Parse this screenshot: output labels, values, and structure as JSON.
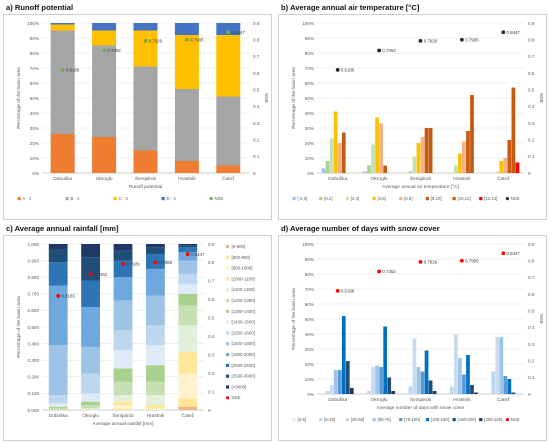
{
  "chart_data": [
    {
      "id": "a",
      "type": "bar",
      "mode": "stacked",
      "title": "a) Runoff potential",
      "xlabel": "Runoff potential",
      "ylabel": "Percentage of the basin area",
      "y2label": "NSE",
      "ylim": [
        0,
        1
      ],
      "y2lim": [
        0,
        0.9
      ],
      "yticks": [
        "0%",
        "10%",
        "20%",
        "30%",
        "40%",
        "50%",
        "60%",
        "70%",
        "80%",
        "90%",
        "100%"
      ],
      "y2ticks": [
        "0",
        "0.1",
        "0.2",
        "0.3",
        "0.4",
        "0.5",
        "0.6",
        "0.7",
        "0.8",
        "0.9"
      ],
      "categories": [
        "Dobuška",
        "Okrogło",
        "Šentjakob",
        "Hrastnik",
        "Čatež"
      ],
      "series": [
        {
          "name": "A - 1",
          "color": "#ed7d31",
          "values": [
            0.26,
            0.24,
            0.15,
            0.08,
            0.05
          ]
        },
        {
          "name": "B - 2",
          "color": "#a5a5a5",
          "values": [
            0.69,
            0.61,
            0.56,
            0.48,
            0.46
          ]
        },
        {
          "name": "C - 3",
          "color": "#ffc000",
          "values": [
            0.04,
            0.1,
            0.24,
            0.36,
            0.41
          ]
        },
        {
          "name": "D - 4",
          "color": "#4472c4",
          "values": [
            0.01,
            0.05,
            0.05,
            0.08,
            0.08
          ]
        }
      ],
      "nse": {
        "name": "NSE",
        "color": "#70ad47",
        "values": [
          0.6186,
          0.7352,
          0.7929,
          0.7995,
          0.8447
        ],
        "labels": [
          "0.6186",
          "0.7352",
          "0.7929",
          "0.7995",
          "0.8447"
        ]
      },
      "legend_position": "bottom"
    },
    {
      "id": "b",
      "type": "bar",
      "mode": "grouped",
      "title": "b) Average annual air temperature [°C]",
      "xlabel": "Average annual air temperature [°C]",
      "ylabel": "Percentage of the basin area",
      "y2label": "NSE",
      "ylim": [
        0,
        1
      ],
      "y2lim": [
        0,
        0.9
      ],
      "yticks": [
        "0%",
        "10%",
        "20%",
        "30%",
        "40%",
        "50%",
        "60%",
        "70%",
        "80%",
        "90%",
        "100%"
      ],
      "y2ticks": [
        "0",
        "0.1",
        "0.2",
        "0.3",
        "0.4",
        "0.5",
        "0.6",
        "0.7",
        "0.8",
        "0.9"
      ],
      "categories": [
        "Dobuška",
        "Okrogło",
        "Šentjakob",
        "Hrastnik",
        "Čatež"
      ],
      "series": [
        {
          "name": "[-2,0]",
          "color": "#9dc3e6",
          "values": [
            0.03,
            0.01,
            0.0,
            0.0,
            0.0
          ]
        },
        {
          "name": "[0,2]",
          "color": "#a9d18e",
          "values": [
            0.08,
            0.05,
            0.01,
            0.0,
            0.0
          ]
        },
        {
          "name": "[2,4]",
          "color": "#c5e0b4",
          "values": [
            0.23,
            0.19,
            0.11,
            0.05,
            0.01
          ]
        },
        {
          "name": "[4,6]",
          "color": "#ffc000",
          "values": [
            0.41,
            0.37,
            0.2,
            0.13,
            0.08
          ]
        },
        {
          "name": "[6,8]",
          "color": "#f4b183",
          "values": [
            0.2,
            0.33,
            0.24,
            0.21,
            0.1
          ]
        },
        {
          "name": "[8,10]",
          "color": "#c55a11",
          "values": [
            0.27,
            0.05,
            0.3,
            0.28,
            0.22
          ]
        },
        {
          "name": "[10,12]",
          "color": "#c55a11",
          "values": [
            0.0,
            0.0,
            0.3,
            0.52,
            0.57
          ]
        },
        {
          "name": "[12,14]",
          "color": "#ff0000",
          "values": [
            0.0,
            0.0,
            0.0,
            0.0,
            0.07
          ]
        }
      ],
      "nse": {
        "name": "NSE",
        "color": "#262626",
        "values": [
          0.6186,
          0.7352,
          0.7929,
          0.7995,
          0.8447
        ],
        "labels": [
          "0.6186",
          "0.7352",
          "0.7929",
          "0.7995",
          "0.8447"
        ]
      },
      "legend_position": "bottom"
    },
    {
      "id": "c",
      "type": "bar",
      "mode": "stacked",
      "title": "c) Average annual rainfall [mm]",
      "xlabel": "Average annual rainfall [mm]",
      "ylabel": "Percentage of the basin area",
      "y2label": "",
      "ylim": [
        0,
        1
      ],
      "y2lim": [
        0,
        0.9
      ],
      "yticks": [
        "0.000",
        "0.100",
        "0.200",
        "0.300",
        "0.400",
        "0.500",
        "0.600",
        "0.700",
        "0.800",
        "0.900",
        "1.000"
      ],
      "y2ticks": [
        "0",
        "0.1",
        "0.2",
        "0.3",
        "0.4",
        "0.5",
        "0.6",
        "0.7",
        "0.8",
        "0.9"
      ],
      "categories": [
        "Dobuška",
        "Okrogło",
        "Šentjakob",
        "Hrastnik",
        "Čatež"
      ],
      "series": [
        {
          "name": "[0-800]",
          "color": "#f4b183",
          "values": [
            0,
            0,
            0,
            0,
            0.02
          ]
        },
        {
          "name": "[800-900]",
          "color": "#ffe699",
          "values": [
            0,
            0,
            0.01,
            0,
            0.05
          ]
        },
        {
          "name": "[900-1000]",
          "color": "#fff2cc",
          "values": [
            0,
            0,
            0.02,
            0.01,
            0.15
          ]
        },
        {
          "name": "[1000-1100]",
          "color": "#ffe699",
          "values": [
            0,
            0,
            0.02,
            0.02,
            0.13
          ]
        },
        {
          "name": "[1100-1200]",
          "color": "#e2efda",
          "values": [
            0,
            0.01,
            0.04,
            0.06,
            0.16
          ]
        },
        {
          "name": "[1200-1300]",
          "color": "#c6e0b4",
          "values": [
            0.01,
            0.02,
            0.08,
            0.08,
            0.12
          ]
        },
        {
          "name": "[1300-1400]",
          "color": "#a9d18e",
          "values": [
            0.01,
            0.02,
            0.08,
            0.1,
            0.07
          ]
        },
        {
          "name": "[1400-1500]",
          "color": "#deebf7",
          "values": [
            0.02,
            0.05,
            0.11,
            0.12,
            0.06
          ]
        },
        {
          "name": "[1500-1600]",
          "color": "#bdd7ee",
          "values": [
            0.05,
            0.12,
            0.12,
            0.12,
            0.06
          ]
        },
        {
          "name": "[1600-1800]",
          "color": "#9dc3e6",
          "values": [
            0.3,
            0.16,
            0.18,
            0.18,
            0.08
          ]
        },
        {
          "name": "[1800-2000]",
          "color": "#6fa8dc",
          "values": [
            0.36,
            0.24,
            0.14,
            0.16,
            0.05
          ]
        },
        {
          "name": "[2000-2500]",
          "color": "#2e75b6",
          "values": [
            0.14,
            0.16,
            0.1,
            0.09,
            0.03
          ]
        },
        {
          "name": "[2500-3000]",
          "color": "#1f4e79",
          "values": [
            0.08,
            0.14,
            0.06,
            0.04,
            0.01
          ]
        },
        {
          "name": "[>3000]",
          "color": "#203864",
          "values": [
            0.03,
            0.08,
            0.04,
            0.02,
            0.01
          ]
        }
      ],
      "nse": {
        "name": "NSE",
        "color": "#ff0000",
        "values": [
          0.6186,
          0.7352,
          0.7929,
          0.7995,
          0.8447
        ],
        "labels": [
          "0.6186",
          "0.7352",
          "0.7929",
          "0.7995",
          "0.8447"
        ]
      },
      "legend_position": "right"
    },
    {
      "id": "d",
      "type": "bar",
      "mode": "grouped",
      "title": "d) Average number of days with snow cover",
      "xlabel": "Average number of days with snow cover",
      "ylabel": "Percentage of the basin area",
      "y2label": "NSE",
      "ylim": [
        0,
        1
      ],
      "y2lim": [
        0,
        0.9
      ],
      "yticks": [
        "0%",
        "10%",
        "20%",
        "30%",
        "40%",
        "50%",
        "60%",
        "70%",
        "80%",
        "90%",
        "100%"
      ],
      "y2ticks": [
        "0",
        "0.1",
        "0.2",
        "0.3",
        "0.4",
        "0.5",
        "0.6",
        "0.7",
        "0.8",
        "0.9"
      ],
      "categories": [
        "Dobuška",
        "Okrogło",
        "Šentjakob",
        "Hrastnik",
        "Čatež"
      ],
      "series": [
        {
          "name": "[0-5]",
          "color": "#deebf7",
          "values": [
            0.0,
            0.0,
            0.0,
            0.0,
            0.0
          ]
        },
        {
          "name": "[5-25]",
          "color": "#bdd7ee",
          "values": [
            0.02,
            0.02,
            0.05,
            0.05,
            0.15
          ]
        },
        {
          "name": "[25-50]",
          "color": "#c9dcef",
          "values": [
            0.06,
            0.18,
            0.37,
            0.4,
            0.38
          ]
        },
        {
          "name": "[50-75]",
          "color": "#9dc3e6",
          "values": [
            0.16,
            0.19,
            0.18,
            0.24,
            0.38
          ]
        },
        {
          "name": "[75-100]",
          "color": "#5b9bd5",
          "values": [
            0.16,
            0.18,
            0.15,
            0.13,
            0.12
          ]
        },
        {
          "name": "[100-150]",
          "color": "#0070c0",
          "values": [
            0.52,
            0.45,
            0.29,
            0.26,
            0.1
          ]
        },
        {
          "name": "[150-200]",
          "color": "#1f4e79",
          "values": [
            0.22,
            0.11,
            0.09,
            0.06,
            0.01
          ]
        },
        {
          "name": "[200-250]",
          "color": "#203864",
          "values": [
            0.04,
            0.02,
            0.02,
            0.01,
            0.0
          ]
        }
      ],
      "nse": {
        "name": "NSE",
        "color": "#ff0000",
        "values": [
          0.6186,
          0.7352,
          0.7929,
          0.7995,
          0.8447
        ],
        "labels": [
          "0.6186",
          "0.7352",
          "0.7929",
          "0.7995",
          "0.8447"
        ]
      },
      "legend_position": "bottom"
    }
  ]
}
